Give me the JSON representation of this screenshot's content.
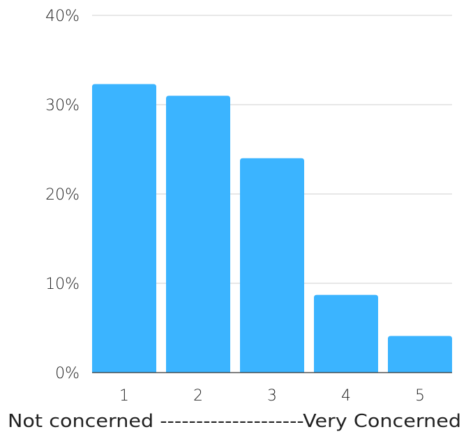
{
  "chart_data": {
    "type": "bar",
    "categories": [
      "1",
      "2",
      "3",
      "4",
      "5"
    ],
    "values": [
      32.3,
      31.0,
      24.0,
      8.7,
      4.1
    ],
    "y_ticks": [
      "0%",
      "10%",
      "20%",
      "30%",
      "40%"
    ],
    "y_tick_values": [
      0,
      10,
      20,
      30,
      40
    ],
    "ylim": [
      0,
      40
    ],
    "xlabel": "Not concerned --------------------Very Concerned",
    "ylabel": "",
    "title": "",
    "grid": true,
    "legend": "none",
    "bar_color": "#3bb4ff"
  }
}
